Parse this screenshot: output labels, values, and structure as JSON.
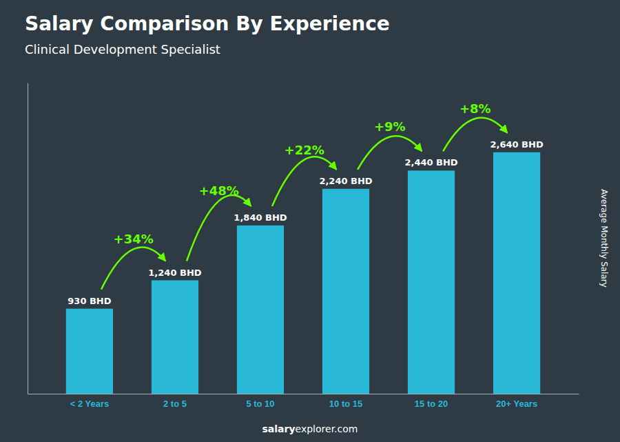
{
  "chart_data": {
    "type": "bar",
    "title": "Salary Comparison By Experience",
    "subtitle": "Clinical Development Specialist",
    "categories": [
      "< 2 Years",
      "2 to 5",
      "5 to 10",
      "10 to 15",
      "15 to 20",
      "20+ Years"
    ],
    "values": [
      930,
      1240,
      1840,
      2240,
      2440,
      2640
    ],
    "value_labels": [
      "930 BHD",
      "1,240 BHD",
      "1,840 BHD",
      "2,240 BHD",
      "2,440 BHD",
      "2,640 BHD"
    ],
    "data_labels": true,
    "color": "#29b8d8",
    "ylabel": "Average Monthly Salary",
    "ylim": [
      0,
      3400
    ],
    "yticks": [],
    "tick_labels": "x",
    "grid": false,
    "annotations": [
      {
        "text": "+34%",
        "color": "#66ff00"
      },
      {
        "text": "+48%",
        "color": "#66ff00"
      },
      {
        "text": "+22%",
        "color": "#66ff00"
      },
      {
        "text": "+9%",
        "color": "#66ff00"
      },
      {
        "text": "+8%",
        "color": "#66ff00"
      }
    ],
    "footer": [
      "salary",
      "explorer.com"
    ]
  }
}
